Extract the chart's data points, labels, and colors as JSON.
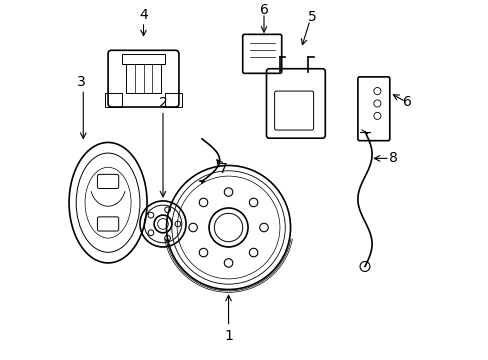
{
  "background_color": "#ffffff",
  "line_color": "#000000",
  "line_width": 1.2,
  "figsize": [
    4.89,
    3.6
  ],
  "dpi": 100
}
